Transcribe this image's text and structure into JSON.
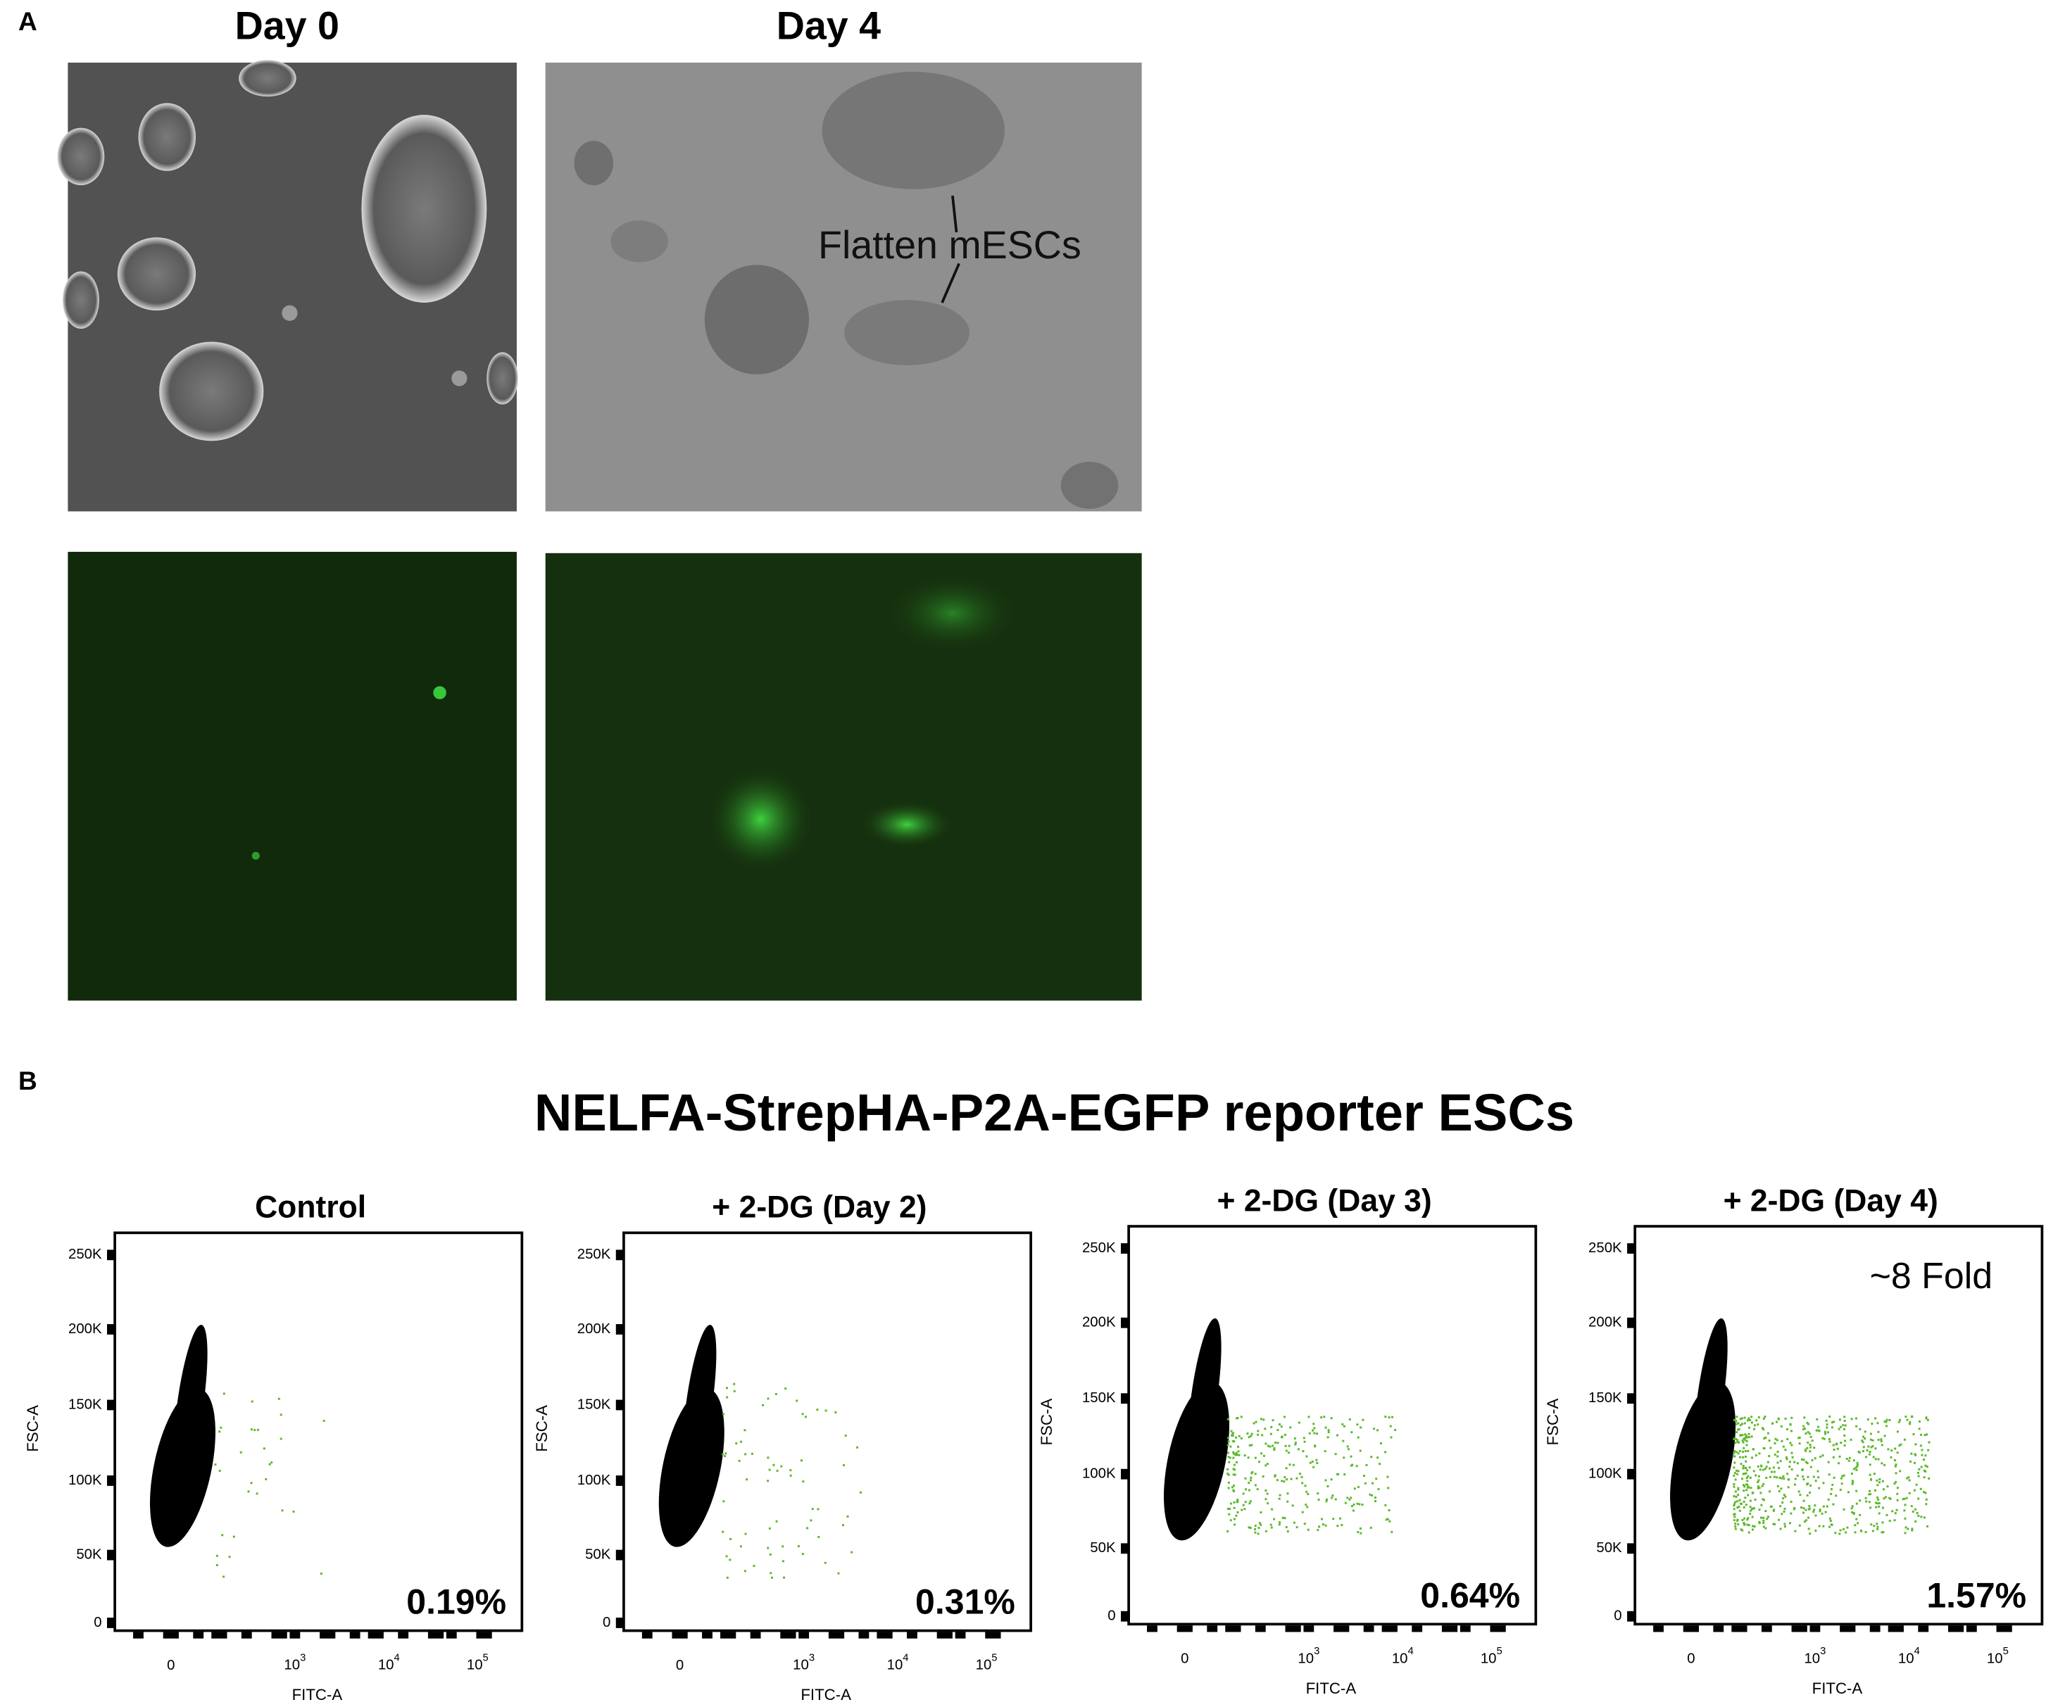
{
  "panel_a": {
    "label": "A",
    "columns": [
      "Day 0",
      "Day 4"
    ],
    "annotation": "Flatten mESCs"
  },
  "panel_b": {
    "label": "B",
    "title": "NELFA-StrepHA-P2A-EGFP reporter ESCs",
    "y_axis_label": "FSC-A",
    "x_axis_label": "FITC-A",
    "y_ticks": [
      "250K",
      "200K",
      "150K",
      "100K",
      "50K",
      "0"
    ],
    "x_ticks": [
      "0",
      {
        "base": "10",
        "exp": "3"
      },
      {
        "base": "10",
        "exp": "4"
      },
      {
        "base": "10",
        "exp": "5"
      }
    ],
    "plots": [
      {
        "title": "Control",
        "percentage": "0.19%"
      },
      {
        "title": "+ 2-DG (Day 2)",
        "percentage": "0.31%"
      },
      {
        "title": "+ 2-DG (Day 3)",
        "percentage": "0.64%"
      },
      {
        "title": "+ 2-DG (Day 4)",
        "percentage": "1.57%",
        "note": "~8 Fold"
      }
    ]
  }
}
